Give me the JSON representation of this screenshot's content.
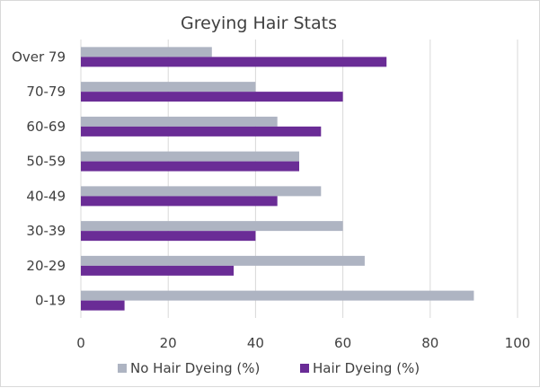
{
  "chart_data": {
    "type": "bar",
    "orientation": "horizontal",
    "title": "Greying Hair Stats",
    "categories": [
      "Over 79",
      "70-79",
      "60-69",
      "50-59",
      "40-49",
      "30-39",
      "20-29",
      "0-19"
    ],
    "series": [
      {
        "name": "No Hair Dyeing (%)",
        "color": "#aeb4c2",
        "values": [
          30,
          40,
          45,
          50,
          55,
          60,
          65,
          90
        ]
      },
      {
        "name": "Hair Dyeing (%)",
        "color": "#6a2c96",
        "values": [
          70,
          60,
          55,
          50,
          45,
          40,
          35,
          10
        ]
      }
    ],
    "xlim": [
      0,
      100
    ],
    "xticks": [
      0,
      20,
      40,
      60,
      80,
      100
    ],
    "grid": true,
    "legend_position": "bottom"
  }
}
